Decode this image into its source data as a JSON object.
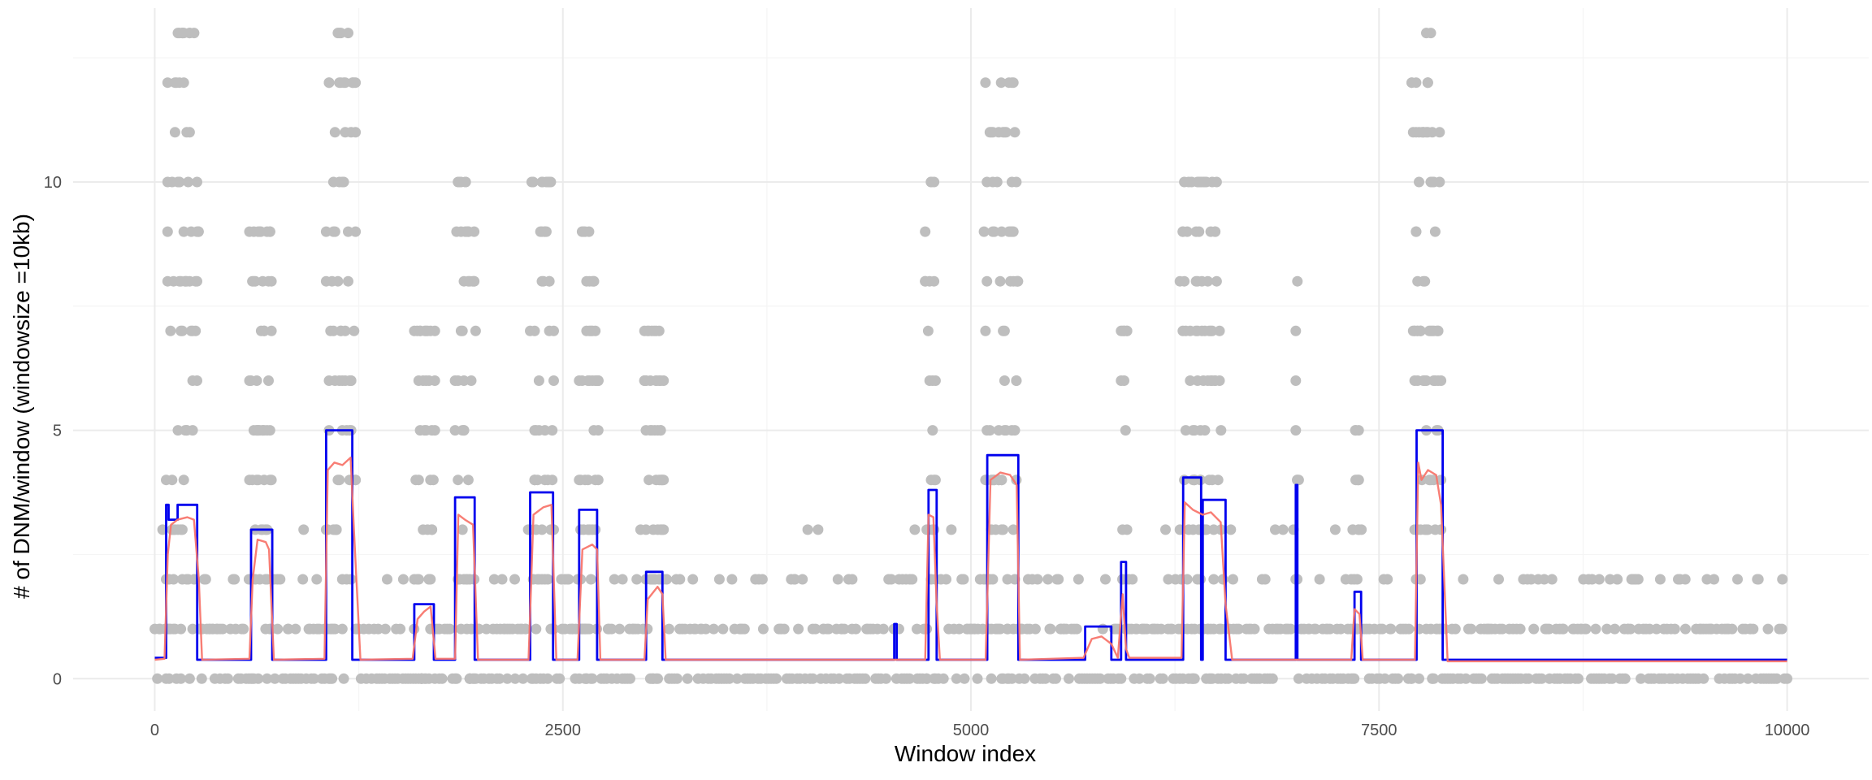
{
  "chart_data": {
    "type": "scatter",
    "xlabel": "Window index",
    "ylabel": "# of DNM/window (windowsize =10kb)",
    "xlim": [
      -500,
      10500
    ],
    "ylim": [
      -0.65,
      13.5
    ],
    "x_ticks": [
      {
        "value": 0,
        "label": "0"
      },
      {
        "value": 2500,
        "label": "2500"
      },
      {
        "value": 5000,
        "label": "5000"
      },
      {
        "value": 7500,
        "label": "7500"
      },
      {
        "value": 10000,
        "label": "10000"
      }
    ],
    "y_ticks": [
      {
        "value": 0,
        "label": "0"
      },
      {
        "value": 5,
        "label": "5"
      },
      {
        "value": 10,
        "label": "10"
      }
    ],
    "grid": true,
    "colors": {
      "points": "#bebebe",
      "step_line": "#0000ee",
      "smooth_line": "#f8766d",
      "grid_major": "#ebebeb",
      "grid_minor": "#f5f5f5"
    },
    "hotspots": [
      {
        "x0": 70,
        "x1": 270,
        "max": 13
      },
      {
        "x0": 580,
        "x1": 720,
        "max": 9
      },
      {
        "x0": 1050,
        "x1": 1230,
        "max": 13
      },
      {
        "x0": 1590,
        "x1": 1720,
        "max": 7
      },
      {
        "x0": 1840,
        "x1": 1970,
        "max": 10
      },
      {
        "x0": 2300,
        "x1": 2450,
        "max": 10
      },
      {
        "x0": 2600,
        "x1": 2720,
        "max": 9
      },
      {
        "x0": 3000,
        "x1": 3120,
        "max": 7
      },
      {
        "x0": 4720,
        "x1": 4790,
        "max": 10
      },
      {
        "x0": 5080,
        "x1": 5290,
        "max": 12
      },
      {
        "x0": 5920,
        "x1": 5960,
        "max": 7
      },
      {
        "x0": 6280,
        "x1": 6540,
        "max": 10
      },
      {
        "x0": 6990,
        "x1": 7010,
        "max": 8
      },
      {
        "x0": 7330,
        "x1": 7380,
        "max": 5
      },
      {
        "x0": 7700,
        "x1": 7880,
        "max": 13
      }
    ],
    "series": [
      {
        "type": "step",
        "x": [
          0,
          70,
          70,
          85,
          85,
          140,
          140,
          260,
          260,
          590,
          590,
          720,
          720,
          1050,
          1050,
          1210,
          1210,
          1590,
          1590,
          1710,
          1710,
          1840,
          1840,
          1960,
          1960,
          2300,
          2300,
          2440,
          2440,
          2600,
          2600,
          2710,
          2710,
          3010,
          3010,
          3110,
          3110,
          4530,
          4530,
          4545,
          4545,
          4740,
          4740,
          4790,
          4790,
          5100,
          5100,
          5290,
          5290,
          5700,
          5700,
          5860,
          5860,
          5920,
          5920,
          5950,
          5950,
          6300,
          6300,
          6410,
          6410,
          6420,
          6420,
          6560,
          6560,
          6990,
          6990,
          7000,
          7000,
          7350,
          7350,
          7390,
          7390,
          7730,
          7730,
          7890,
          7890,
          10000
        ],
        "y": [
          0.42,
          0.42,
          3.5,
          3.5,
          3.2,
          3.2,
          3.5,
          3.5,
          0.38,
          0.38,
          3.0,
          3.0,
          0.38,
          0.38,
          5.0,
          5.0,
          0.38,
          0.38,
          1.5,
          1.5,
          0.38,
          0.38,
          3.65,
          3.65,
          0.38,
          0.38,
          3.75,
          3.75,
          0.38,
          0.38,
          3.4,
          3.4,
          0.38,
          0.38,
          2.15,
          2.15,
          0.38,
          0.38,
          1.1,
          1.1,
          0.38,
          0.38,
          3.8,
          3.8,
          0.38,
          0.38,
          4.5,
          4.5,
          0.38,
          0.38,
          1.05,
          1.05,
          0.38,
          0.38,
          2.35,
          2.35,
          0.38,
          0.38,
          4.05,
          4.05,
          0.38,
          0.38,
          3.6,
          3.6,
          0.38,
          0.38,
          3.9,
          3.9,
          0.38,
          0.38,
          1.75,
          1.75,
          0.38,
          0.38,
          5.0,
          5.0,
          0.38,
          0.38
        ]
      },
      {
        "type": "line",
        "x": [
          0,
          60,
          80,
          100,
          140,
          200,
          240,
          270,
          290,
          580,
          600,
          630,
          680,
          700,
          730,
          1040,
          1060,
          1100,
          1150,
          1200,
          1220,
          1260,
          1580,
          1610,
          1650,
          1690,
          1720,
          1840,
          1860,
          1900,
          1950,
          1980,
          2290,
          2320,
          2380,
          2430,
          2460,
          2590,
          2620,
          2680,
          2710,
          2730,
          3000,
          3020,
          3080,
          3110,
          3130,
          4720,
          4740,
          4770,
          4790,
          4810,
          5090,
          5120,
          5180,
          5240,
          5280,
          5300,
          5690,
          5740,
          5800,
          5860,
          5900,
          5930,
          5950,
          5970,
          6290,
          6310,
          6360,
          6420,
          6470,
          6530,
          6560,
          6600,
          7330,
          7350,
          7380,
          7400,
          7720,
          7740,
          7760,
          7800,
          7850,
          7880,
          7920,
          10000
        ],
        "y": [
          0.38,
          0.4,
          2.5,
          3.1,
          3.2,
          3.25,
          3.2,
          2.0,
          0.38,
          0.4,
          2.0,
          2.8,
          2.75,
          2.6,
          0.38,
          0.4,
          4.2,
          4.35,
          4.3,
          4.45,
          3.0,
          0.38,
          0.4,
          1.2,
          1.35,
          1.45,
          0.4,
          0.4,
          3.3,
          3.2,
          3.1,
          0.38,
          0.38,
          3.3,
          3.45,
          3.5,
          0.38,
          0.38,
          2.6,
          2.7,
          2.6,
          0.38,
          0.38,
          1.6,
          1.85,
          1.7,
          0.38,
          0.38,
          3.3,
          3.25,
          1.5,
          0.38,
          0.38,
          4.0,
          4.15,
          4.1,
          3.9,
          0.38,
          0.42,
          0.8,
          0.85,
          0.7,
          0.42,
          1.7,
          0.6,
          0.42,
          0.42,
          3.55,
          3.4,
          3.3,
          3.35,
          3.15,
          1.5,
          0.38,
          0.38,
          1.4,
          1.3,
          0.38,
          0.38,
          4.35,
          4.0,
          4.2,
          4.1,
          3.5,
          0.35,
          0.35
        ]
      }
    ]
  }
}
